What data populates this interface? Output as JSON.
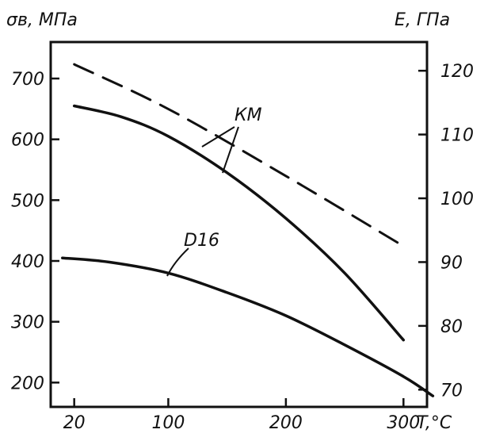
{
  "chart_data": {
    "type": "line",
    "left_axis_title": "σв, МПа",
    "right_axis_title": "E, ГПа",
    "x_axis_title": "T,°C",
    "x_ticks": [
      20,
      100,
      200,
      300
    ],
    "xlim": [
      0,
      320
    ],
    "left_ticks": [
      200,
      300,
      400,
      500,
      600,
      700
    ],
    "left_ylim": [
      160,
      760
    ],
    "right_ticks": [
      70,
      80,
      90,
      100,
      110,
      120
    ],
    "right_ylim": [
      67.3,
      124.5
    ],
    "series": [
      {
        "name": "КМ",
        "axis": "left",
        "style": "solid",
        "x": [
          20,
          60,
          100,
          150,
          200,
          250,
          300
        ],
        "y": [
          655,
          637,
          605,
          545,
          470,
          380,
          270
        ]
      },
      {
        "name": "КМ",
        "axis": "right",
        "style": "dashed",
        "x": [
          20,
          100,
          200,
          300
        ],
        "y": [
          121,
          114,
          103.5,
          92.5
        ]
      },
      {
        "name": "D16",
        "axis": "left",
        "style": "solid",
        "x": [
          10,
          50,
          100,
          150,
          200,
          250,
          300,
          325
        ],
        "y": [
          405,
          398,
          380,
          348,
          310,
          262,
          210,
          178
        ]
      }
    ],
    "annotations": [
      {
        "text": "КМ",
        "targets": [
          "КМ-dashed",
          "КМ-solid"
        ]
      },
      {
        "text": "D16",
        "target": "D16"
      }
    ]
  }
}
